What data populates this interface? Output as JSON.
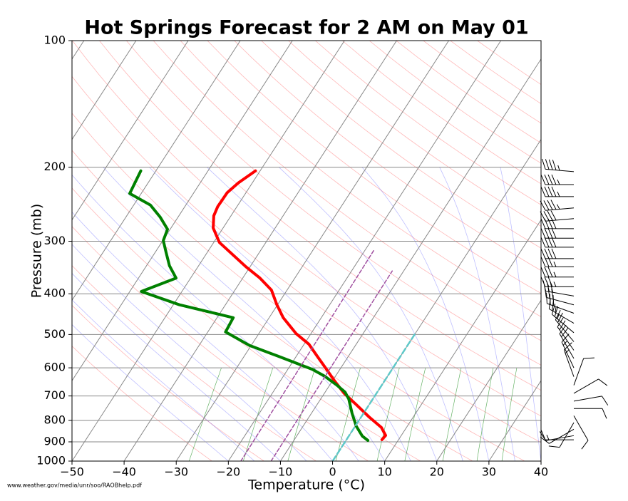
{
  "chart_data": {
    "type": "skewt",
    "title": "Hot Springs Forecast for 2 AM on May 01",
    "xlabel": "Temperature (°C)",
    "ylabel": "Pressure (mb)",
    "source": "www.weather.gov/media/unr/soo/RAOBhelp.pdf",
    "xlim": [
      -50,
      40
    ],
    "ylim": [
      1000,
      100
    ],
    "log_y": true,
    "xticks": [
      {
        "value": -50,
        "label": "−50"
      },
      {
        "value": -40,
        "label": "−40"
      },
      {
        "value": -30,
        "label": "−30"
      },
      {
        "value": -20,
        "label": "−20"
      },
      {
        "value": -10,
        "label": "−10"
      },
      0,
      10,
      20,
      30,
      40
    ],
    "yticks": [
      100,
      200,
      300,
      400,
      500,
      600,
      700,
      800,
      900,
      1000
    ],
    "grid": true,
    "series": [
      {
        "color": "#ff0000",
        "width": 4,
        "dash": "none",
        "pressure": [
          889,
          869,
          832,
          785,
          735,
          690,
          646,
          602,
          563,
          527,
          497,
          456,
          424,
          392,
          367,
          345,
          302,
          279,
          261,
          248,
          230,
          218,
          204
        ],
        "temperature": [
          6.8,
          7.0,
          5.2,
          1.5,
          -2.4,
          -6.2,
          -9.5,
          -12.8,
          -16.0,
          -19.1,
          -22.9,
          -27.3,
          -30.2,
          -33.0,
          -36.7,
          -40.8,
          -48.9,
          -51.9,
          -53.3,
          -53.7,
          -53.6,
          -52.7,
          -50.9
        ]
      },
      {
        "color": "#008000",
        "width": 4,
        "dash": "none",
        "pressure": [
          893,
          872,
          826,
          770,
          712,
          685,
          659,
          628,
          605,
          563,
          531,
          493,
          456,
          425,
          395,
          367,
          343,
          319,
          299,
          281,
          263,
          246,
          231,
          204
        ],
        "temperature": [
          4.2,
          2.6,
          0.2,
          -2.2,
          -4.6,
          -6.2,
          -8.7,
          -12.1,
          -15.3,
          -23.5,
          -30.3,
          -36.6,
          -36.9,
          -48.8,
          -57.8,
          -52.8,
          -55.6,
          -57.9,
          -59.9,
          -60.5,
          -63.4,
          -66.8,
          -72.2,
          -72.9
        ]
      },
      {
        "color": "#a050a0",
        "width": 1.5,
        "dash": "5,3",
        "pressure": [
          1000,
          314
        ],
        "temperature": [
          -17.6,
          -18.3
        ]
      },
      {
        "color": "#a050a0",
        "width": 1.5,
        "dash": "5,3",
        "pressure": [
          1000,
          353
        ],
        "temperature": [
          -11.8,
          -12.2
        ]
      },
      {
        "color": "#5fc8c8",
        "width": 2.5,
        "dash": "8,4",
        "pressure": [
          1000,
          500
        ],
        "temperature": [
          0,
          0
        ]
      }
    ],
    "wind_barbs": {
      "pressure": [
        205,
        220,
        235,
        250,
        265,
        280,
        295,
        310,
        330,
        345,
        365,
        385,
        405,
        425,
        445,
        470,
        495,
        520,
        545,
        570,
        600,
        630,
        660,
        690,
        720,
        750,
        780,
        810,
        840,
        870,
        890
      ],
      "direction": [
        275,
        270,
        270,
        265,
        265,
        270,
        270,
        270,
        270,
        270,
        270,
        270,
        280,
        285,
        290,
        300,
        310,
        320,
        325,
        330,
        335,
        340,
        20,
        60,
        80,
        90,
        150,
        210,
        240,
        260,
        270
      ],
      "speed": [
        45,
        45,
        45,
        45,
        40,
        40,
        40,
        40,
        40,
        35,
        35,
        35,
        30,
        30,
        30,
        25,
        25,
        20,
        20,
        20,
        15,
        15,
        10,
        10,
        10,
        10,
        10,
        10,
        10,
        10,
        15
      ]
    }
  }
}
